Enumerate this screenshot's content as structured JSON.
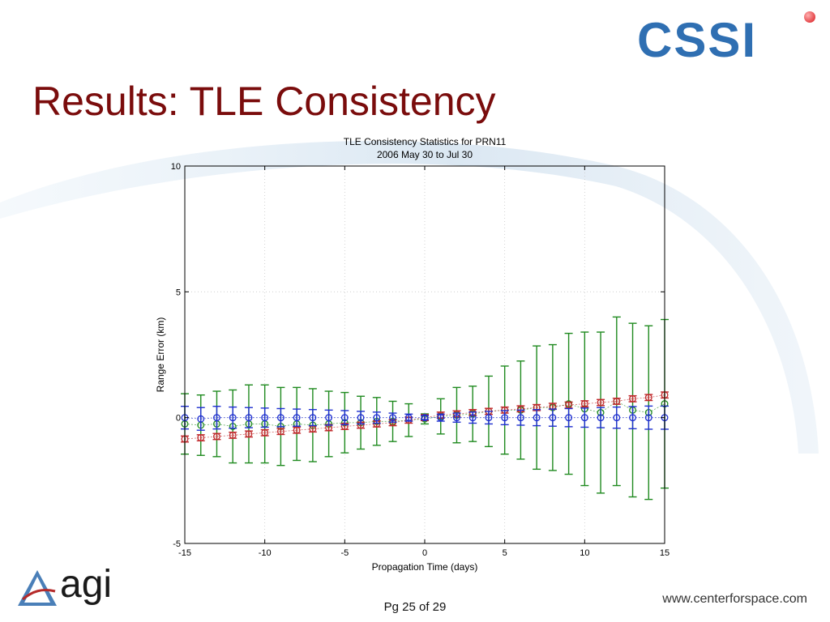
{
  "slide": {
    "title": "Results: TLE Consistency",
    "page": "Pg 25 of 29",
    "url": "www.centerforspace.com",
    "logo_top": "CSSI",
    "logo_bottom": "agi"
  },
  "colors": {
    "title": "#7a0c0c",
    "green": "#1f8a1f",
    "red": "#c0282b",
    "blue": "#1e2fd0"
  },
  "chart_data": {
    "type": "scatter",
    "title": "TLE Consistency Statistics for PRN11",
    "subtitle": "2006 May 30 to Jul 30",
    "xlabel": "Propagation Time (days)",
    "ylabel": "Range Error (km)",
    "xlim": [
      -15,
      15
    ],
    "ylim": [
      -5,
      10
    ],
    "xticks": [
      "-15",
      "-10",
      "-5",
      "0",
      "5",
      "10",
      "15"
    ],
    "yticks": [
      "-5",
      "0",
      "5",
      "10"
    ],
    "grid": true,
    "x": [
      -15,
      -14,
      -13,
      -12,
      -11,
      -10,
      -9,
      -8,
      -7,
      -6,
      -5,
      -4,
      -3,
      -2,
      -1,
      0,
      1,
      2,
      3,
      4,
      5,
      6,
      7,
      8,
      9,
      10,
      11,
      12,
      13,
      14,
      15
    ],
    "series": [
      {
        "color": "#1f8a1f",
        "values": [
          -0.25,
          -0.3,
          -0.25,
          -0.35,
          -0.25,
          -0.25,
          -0.35,
          -0.25,
          -0.3,
          -0.25,
          -0.2,
          -0.2,
          -0.15,
          -0.15,
          -0.1,
          -0.05,
          0.05,
          0.1,
          0.15,
          0.25,
          0.3,
          0.3,
          0.4,
          0.4,
          0.55,
          0.35,
          0.2,
          0.65,
          0.3,
          0.2,
          0.55
        ],
        "err": [
          1.2,
          1.2,
          1.3,
          1.45,
          1.55,
          1.55,
          1.55,
          1.45,
          1.45,
          1.3,
          1.2,
          1.05,
          0.95,
          0.8,
          0.65,
          0.2,
          0.7,
          1.1,
          1.1,
          1.4,
          1.75,
          1.95,
          2.45,
          2.5,
          2.8,
          3.05,
          3.2,
          3.35,
          3.45,
          3.45,
          3.35
        ]
      },
      {
        "color": "#c0282b",
        "values": [
          -0.85,
          -0.8,
          -0.75,
          -0.7,
          -0.65,
          -0.6,
          -0.55,
          -0.5,
          -0.45,
          -0.4,
          -0.35,
          -0.3,
          -0.25,
          -0.2,
          -0.1,
          0,
          0.1,
          0.15,
          0.2,
          0.25,
          0.3,
          0.35,
          0.4,
          0.45,
          0.5,
          0.55,
          0.6,
          0.65,
          0.75,
          0.8,
          0.9
        ],
        "err": [
          0.12,
          0.12,
          0.12,
          0.12,
          0.12,
          0.12,
          0.12,
          0.12,
          0.12,
          0.12,
          0.12,
          0.12,
          0.12,
          0.12,
          0.12,
          0.12,
          0.12,
          0.12,
          0.12,
          0.12,
          0.12,
          0.12,
          0.12,
          0.12,
          0.12,
          0.12,
          0.12,
          0.12,
          0.12,
          0.12,
          0.12
        ]
      },
      {
        "color": "#1e2fd0",
        "values": [
          0,
          -0.05,
          0,
          0,
          0,
          0,
          0,
          0,
          0,
          0,
          0,
          0,
          0,
          0,
          0,
          0,
          0,
          0,
          0,
          0,
          0,
          0,
          0,
          0,
          0,
          0,
          0,
          0,
          0,
          0,
          0
        ],
        "err": [
          0.45,
          0.45,
          0.45,
          0.42,
          0.4,
          0.38,
          0.36,
          0.34,
          0.32,
          0.3,
          0.28,
          0.25,
          0.22,
          0.18,
          0.14,
          0.08,
          0.14,
          0.18,
          0.22,
          0.25,
          0.28,
          0.3,
          0.32,
          0.34,
          0.36,
          0.38,
          0.4,
          0.42,
          0.44,
          0.46,
          0.46
        ]
      }
    ]
  }
}
